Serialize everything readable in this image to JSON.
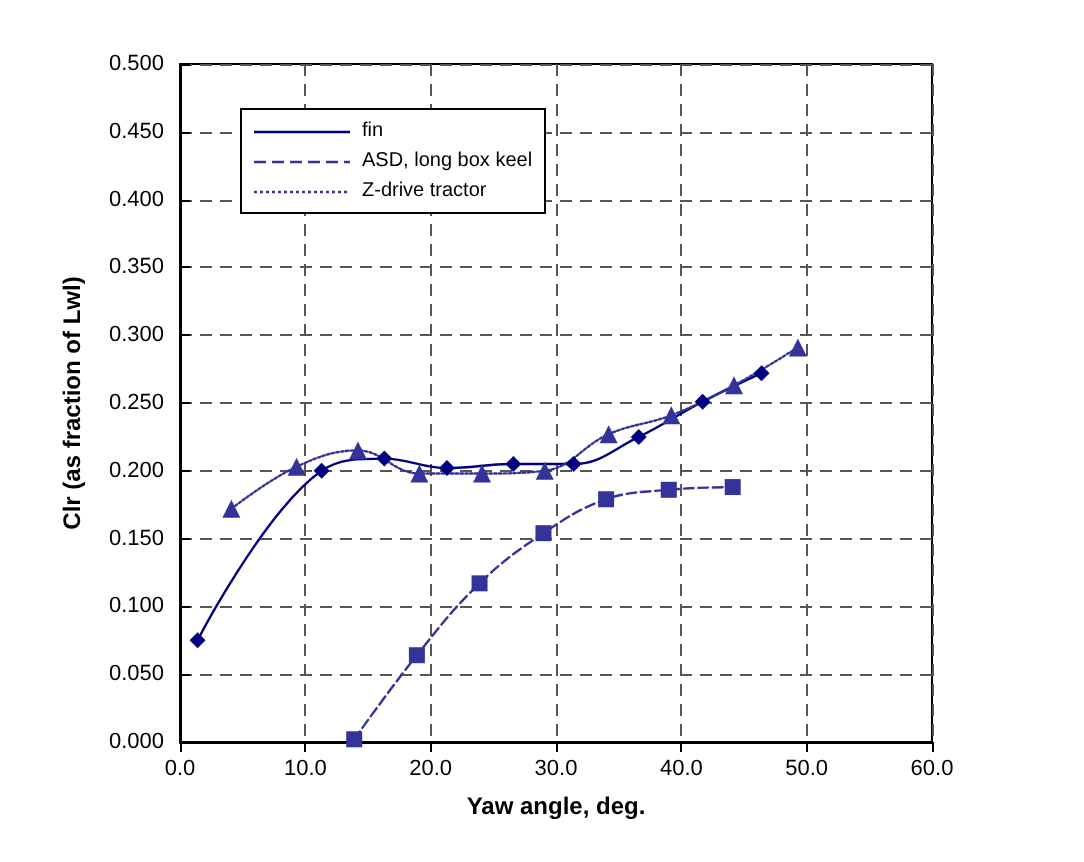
{
  "chart_data": {
    "type": "line",
    "xlabel": "Yaw angle, deg.",
    "ylabel": "Clr (as fraction of Lwl)",
    "xlim": [
      0,
      60
    ],
    "ylim": [
      0,
      0.5
    ],
    "xticks": [
      {
        "value": 0,
        "label": "0.0"
      },
      {
        "value": 10,
        "label": "10.0"
      },
      {
        "value": 20,
        "label": "20.0"
      },
      {
        "value": 30,
        "label": "30.0"
      },
      {
        "value": 40,
        "label": "40.0"
      },
      {
        "value": 50,
        "label": "50.0"
      },
      {
        "value": 60,
        "label": "60.0"
      }
    ],
    "yticks": [
      {
        "value": 0,
        "label": "0.000"
      },
      {
        "value": 0.05,
        "label": "0.050"
      },
      {
        "value": 0.1,
        "label": "0.100"
      },
      {
        "value": 0.15,
        "label": "0.150"
      },
      {
        "value": 0.2,
        "label": "0.200"
      },
      {
        "value": 0.25,
        "label": "0.250"
      },
      {
        "value": 0.3,
        "label": "0.300"
      },
      {
        "value": 0.35,
        "label": "0.350"
      },
      {
        "value": 0.4,
        "label": "0.400"
      },
      {
        "value": 0.45,
        "label": "0.450"
      },
      {
        "value": 0.5,
        "label": "0.500"
      }
    ],
    "grid": true,
    "legend": "top left",
    "series": [
      {
        "name": "fin",
        "color": "#000080",
        "marker": "diamond",
        "line_style": "solid",
        "x": [
          1.4,
          11.3,
          16.3,
          21.3,
          26.6,
          31.4,
          36.6,
          41.7,
          46.4
        ],
        "values": [
          0.075,
          0.2,
          0.209,
          0.202,
          0.205,
          0.205,
          0.225,
          0.251,
          0.272
        ]
      },
      {
        "name": "ASD, long box keel",
        "color": "#333399",
        "marker": "square",
        "line_style": "dashed",
        "x": [
          13.9,
          18.9,
          23.9,
          29.0,
          34.0,
          39.0,
          44.1
        ],
        "values": [
          0.002,
          0.064,
          0.117,
          0.154,
          0.179,
          0.186,
          0.188
        ]
      },
      {
        "name": "Z-drive tractor",
        "color": "#333399",
        "marker": "triangle",
        "line_style": "dotted",
        "x": [
          4.1,
          9.3,
          14.2,
          19.1,
          24.1,
          29.1,
          34.2,
          39.2,
          44.2,
          49.3
        ],
        "values": [
          0.172,
          0.203,
          0.215,
          0.198,
          0.198,
          0.2,
          0.227,
          0.241,
          0.263,
          0.291
        ]
      }
    ]
  }
}
